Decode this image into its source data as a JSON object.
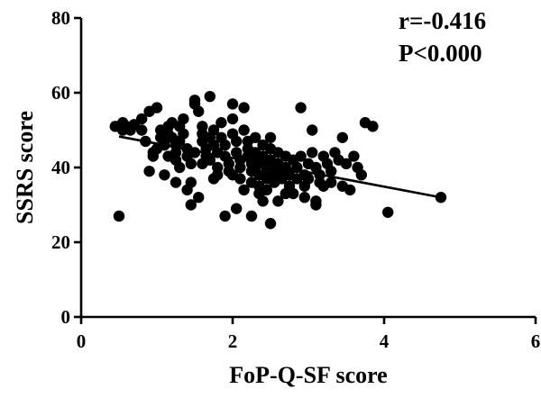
{
  "chart_data": {
    "type": "scatter",
    "title": "",
    "xlabel": "FoP-Q-SF score",
    "ylabel": "SSRS score",
    "xlim": [
      0,
      6
    ],
    "ylim": [
      0,
      80
    ],
    "xticks": [
      0,
      2,
      4,
      6
    ],
    "yticks": [
      0,
      20,
      40,
      60,
      80
    ],
    "x_tick_labels": [
      "0",
      "2",
      "4",
      "6"
    ],
    "y_tick_labels": [
      "0",
      "20",
      "40",
      "60",
      "80"
    ],
    "grid": false,
    "annotations": {
      "r": "r=-0.416",
      "p": "P<0.000"
    },
    "trendline": {
      "x": [
        0.5,
        4.8
      ],
      "y": [
        48.3,
        31.8
      ]
    },
    "series": [
      {
        "points": [
          [
            0.45,
            51
          ],
          [
            0.55,
            52
          ],
          [
            0.55,
            50
          ],
          [
            0.6,
            51
          ],
          [
            0.65,
            50
          ],
          [
            0.7,
            51.5
          ],
          [
            0.8,
            53
          ],
          [
            0.8,
            50
          ],
          [
            0.85,
            47
          ],
          [
            0.9,
            55
          ],
          [
            0.95,
            44
          ],
          [
            0.95,
            43
          ],
          [
            0.9,
            39
          ],
          [
            1.0,
            56
          ],
          [
            1.05,
            48
          ],
          [
            1.05,
            50
          ],
          [
            1.1,
            47
          ],
          [
            1.1,
            46
          ],
          [
            1.15,
            51
          ],
          [
            1.15,
            49
          ],
          [
            1.2,
            48
          ],
          [
            1.2,
            52
          ],
          [
            1.25,
            46
          ],
          [
            1.25,
            44
          ],
          [
            1.25,
            42
          ],
          [
            1.3,
            51
          ],
          [
            1.3,
            47
          ],
          [
            1.35,
            53
          ],
          [
            1.35,
            49
          ],
          [
            1.4,
            45
          ],
          [
            1.4,
            43
          ],
          [
            1.45,
            41
          ],
          [
            1.45,
            36
          ],
          [
            1.5,
            58
          ],
          [
            1.5,
            57
          ],
          [
            1.55,
            55
          ],
          [
            1.6,
            51
          ],
          [
            1.6,
            49
          ],
          [
            1.6,
            47
          ],
          [
            1.65,
            45
          ],
          [
            1.65,
            43
          ],
          [
            1.7,
            42
          ],
          [
            1.7,
            48
          ],
          [
            1.7,
            59
          ],
          [
            1.75,
            50
          ],
          [
            1.75,
            46
          ],
          [
            1.8,
            44
          ],
          [
            1.8,
            40
          ],
          [
            1.8,
            38
          ],
          [
            1.85,
            52
          ],
          [
            1.85,
            48
          ],
          [
            1.9,
            46
          ],
          [
            1.9,
            43
          ],
          [
            1.95,
            41
          ],
          [
            1.95,
            39
          ],
          [
            2.0,
            57
          ],
          [
            2.0,
            53
          ],
          [
            2.0,
            49
          ],
          [
            2.05,
            47
          ],
          [
            2.05,
            44
          ],
          [
            2.1,
            42
          ],
          [
            2.1,
            40
          ],
          [
            2.1,
            37
          ],
          [
            2.15,
            56
          ],
          [
            2.15,
            50
          ],
          [
            2.2,
            47
          ],
          [
            2.2,
            45
          ],
          [
            2.2,
            43
          ],
          [
            2.25,
            41
          ],
          [
            2.25,
            39
          ],
          [
            2.25,
            36
          ],
          [
            2.3,
            48
          ],
          [
            2.3,
            44
          ],
          [
            2.3,
            42
          ],
          [
            2.3,
            40
          ],
          [
            2.35,
            38
          ],
          [
            2.35,
            35
          ],
          [
            2.35,
            33
          ],
          [
            2.4,
            46
          ],
          [
            2.4,
            43
          ],
          [
            2.4,
            41
          ],
          [
            2.45,
            39
          ],
          [
            2.45,
            37
          ],
          [
            2.45,
            34
          ],
          [
            2.5,
            48
          ],
          [
            2.5,
            45
          ],
          [
            2.5,
            42
          ],
          [
            2.55,
            40
          ],
          [
            2.55,
            38
          ],
          [
            2.55,
            36
          ],
          [
            2.6,
            44
          ],
          [
            2.6,
            41
          ],
          [
            2.65,
            39
          ],
          [
            2.65,
            37
          ],
          [
            2.7,
            43
          ],
          [
            2.7,
            40
          ],
          [
            2.75,
            38
          ],
          [
            2.75,
            35
          ],
          [
            2.8,
            33
          ],
          [
            2.8,
            42
          ],
          [
            2.85,
            40
          ],
          [
            2.85,
            37
          ],
          [
            2.9,
            56
          ],
          [
            2.9,
            43
          ],
          [
            2.95,
            38
          ],
          [
            2.95,
            35
          ],
          [
            3.0,
            41
          ],
          [
            3.0,
            37
          ],
          [
            3.05,
            50
          ],
          [
            3.05,
            44
          ],
          [
            3.1,
            40
          ],
          [
            3.1,
            31
          ],
          [
            3.15,
            38
          ],
          [
            3.2,
            43
          ],
          [
            3.2,
            35
          ],
          [
            3.25,
            41
          ],
          [
            3.3,
            39
          ],
          [
            3.3,
            36
          ],
          [
            3.35,
            44
          ],
          [
            3.4,
            42
          ],
          [
            3.45,
            48
          ],
          [
            3.45,
            35
          ],
          [
            3.5,
            41
          ],
          [
            3.55,
            34
          ],
          [
            3.6,
            43
          ],
          [
            3.65,
            40
          ],
          [
            3.7,
            38
          ],
          [
            3.75,
            52
          ],
          [
            3.85,
            51
          ],
          [
            4.05,
            28
          ],
          [
            4.75,
            32
          ],
          [
            0.5,
            27
          ],
          [
            1.25,
            36
          ],
          [
            1.45,
            30
          ],
          [
            1.55,
            32
          ],
          [
            1.9,
            27
          ],
          [
            2.05,
            29
          ],
          [
            2.25,
            27
          ],
          [
            2.5,
            25
          ],
          [
            2.6,
            31
          ],
          [
            3.1,
            30
          ],
          [
            1.0,
            45
          ],
          [
            1.15,
            43
          ],
          [
            1.3,
            40
          ],
          [
            1.5,
            44
          ],
          [
            1.6,
            41
          ],
          [
            1.75,
            37
          ],
          [
            2.0,
            38
          ],
          [
            2.15,
            34
          ],
          [
            2.4,
            31
          ],
          [
            2.7,
            33
          ],
          [
            2.95,
            32
          ],
          [
            3.15,
            36
          ],
          [
            1.1,
            38
          ],
          [
            1.4,
            34
          ]
        ]
      }
    ]
  }
}
